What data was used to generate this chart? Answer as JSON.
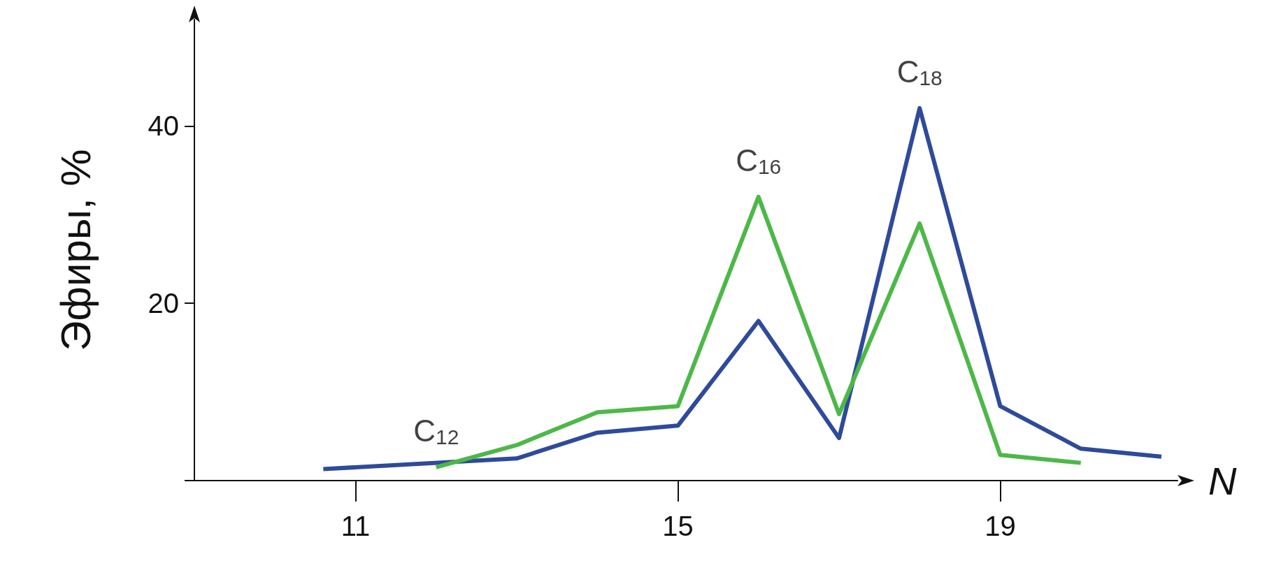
{
  "chart_data": {
    "type": "line",
    "xlabel": "N",
    "ylabel": "Эфиры, %",
    "series": [
      {
        "color": "#2e4a9a",
        "x": [
          10.6,
          13,
          14,
          15,
          16,
          17,
          18,
          19,
          20,
          21
        ],
        "values": [
          1.3,
          2.5,
          5.4,
          6.2,
          18,
          4.8,
          42,
          8.4,
          3.6,
          2.7
        ]
      },
      {
        "color": "#4db848",
        "x": [
          12,
          13,
          14,
          15,
          16,
          17,
          18,
          19,
          20
        ],
        "values": [
          1.5,
          4,
          7.7,
          8.4,
          32,
          7.5,
          29,
          2.9,
          2
        ]
      }
    ],
    "annotations": [
      {
        "text": "C$_{12}$",
        "x": 12,
        "y": 1.5
      },
      {
        "text": "C$_{16}$",
        "x": 16,
        "y": 32
      },
      {
        "text": "C$_{18}$",
        "x": 18,
        "y": 42
      }
    ],
    "xlim": [
      9,
      21.2
    ],
    "xticks": [
      11,
      15,
      19
    ],
    "ylim": [
      0,
      52
    ],
    "yticks": [
      {
        "value": 0,
        "label": null
      },
      20,
      40
    ],
    "grid": false,
    "marker": "none",
    "line_style": "solid"
  }
}
